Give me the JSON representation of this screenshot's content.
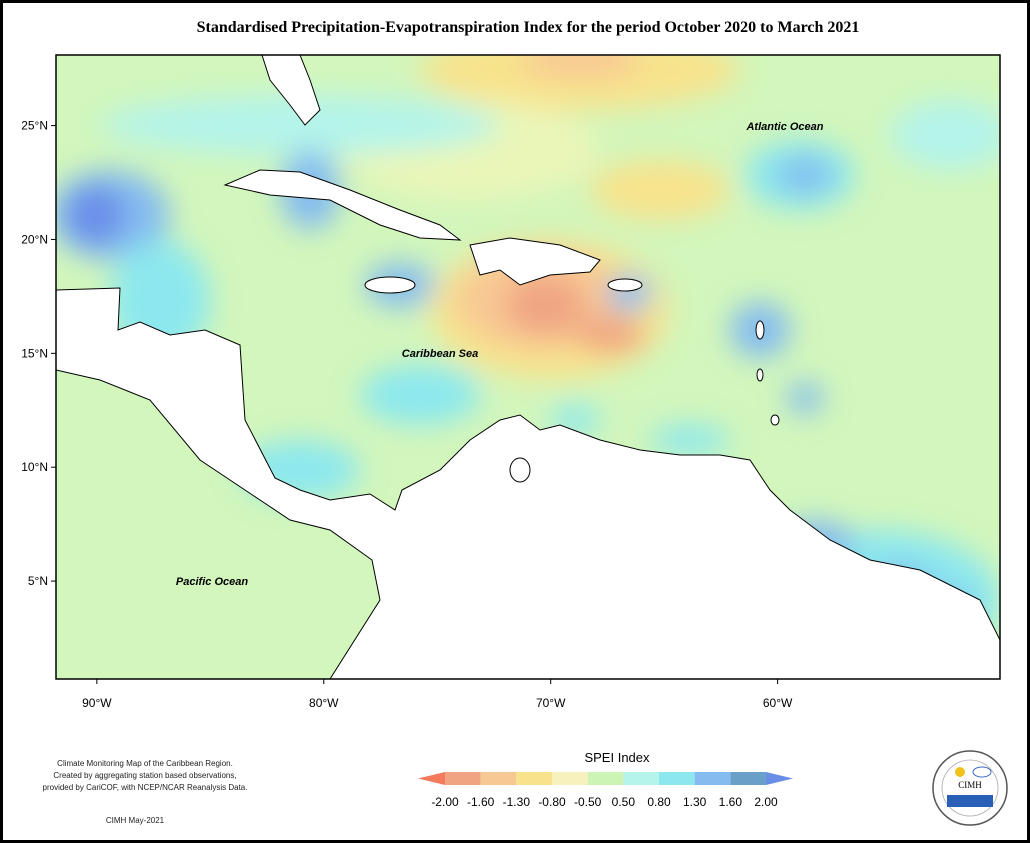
{
  "title": "Standardised Precipitation-Evapotranspiration Index for the period October 2020 to March 2021",
  "map": {
    "xlim": [
      -91.8,
      -50.2
    ],
    "ylim": [
      0.7,
      28.1
    ],
    "xticks": [
      {
        "value": -90,
        "label": "90°W"
      },
      {
        "value": -80,
        "label": "80°W"
      },
      {
        "value": -70,
        "label": "70°W"
      },
      {
        "value": -60,
        "label": "60°W"
      }
    ],
    "yticks": [
      {
        "value": 5,
        "label": "5°N"
      },
      {
        "value": 10,
        "label": "10°N"
      },
      {
        "value": 15,
        "label": "15°N"
      },
      {
        "value": 20,
        "label": "20°N"
      },
      {
        "value": 25,
        "label": "25°N"
      }
    ],
    "labels": [
      "Atlantic Ocean",
      "Caribbean Sea",
      "Pacific Ocean"
    ]
  },
  "legend": {
    "title": "SPEI Index",
    "colors": [
      "#f47a5e",
      "#f0a482",
      "#f8c894",
      "#f8e38c",
      "#f7f1be",
      "#ccf4b4",
      "#b4f4ea",
      "#8ce8ee",
      "#84bcf0",
      "#6aa0c8",
      "#6a8ee8"
    ],
    "ticks": [
      {
        "value": -2,
        "label": "-2.00"
      },
      {
        "value": -1.6,
        "label": "-1.60"
      },
      {
        "value": -1.3,
        "label": "-1.30"
      },
      {
        "value": -0.8,
        "label": "-0.80"
      },
      {
        "value": -0.5,
        "label": "-0.50"
      },
      {
        "value": 0.5,
        "label": "0.50"
      },
      {
        "value": 0.8,
        "label": "0.80"
      },
      {
        "value": 1.3,
        "label": "1.30"
      },
      {
        "value": 1.6,
        "label": "1.60"
      },
      {
        "value": 2,
        "label": "2.00"
      }
    ]
  },
  "notes": [
    "Climate Monitoring Map of the Caribbean Region.",
    "Created by aggregating station based observations,",
    "provided by CariCOF, with NCEP/NCAR Reanalysis Data."
  ],
  "date": "CIMH May-2021",
  "logo": "CIMH"
}
